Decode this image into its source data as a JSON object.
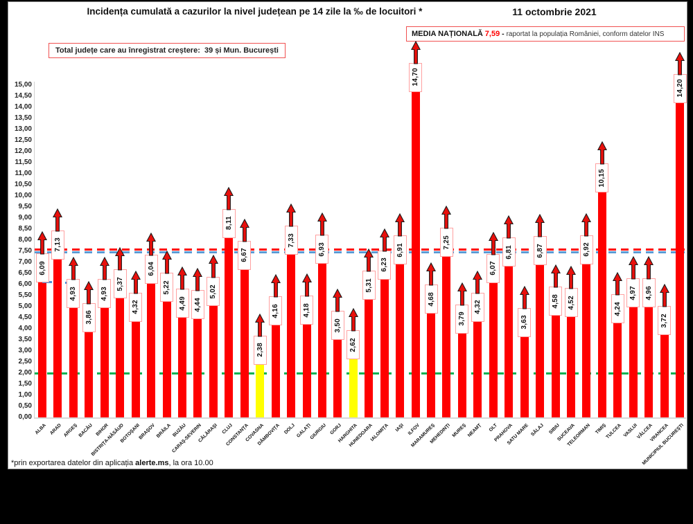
{
  "header": {
    "title": "Incidența cumulată a cazurilor la nivel județean pe 14 zile la ‰ de locuitori *",
    "date": "11 octombrie 2021",
    "growth_box_text": "Total județe care au înregistrat creștere:  39 și Mun. București",
    "national_average": {
      "label": "MEDIA NAȚIONALĂ",
      "value": "7,59",
      "separator": "-",
      "note": "raportat la populația României, conform datelor INS"
    }
  },
  "footer": {
    "prefix": "*prin exportarea datelor din aplicația ",
    "bold": "alerte.ms",
    "suffix": ", la ora 10.00"
  },
  "chart_data": {
    "type": "bar",
    "title": "Incidența cumulată a cazurilor la nivel județean pe 14 zile la ‰ de locuitori *",
    "xlabel": "",
    "ylabel": "",
    "ylim": [
      0,
      15
    ],
    "ytick_step": 0.5,
    "grid": false,
    "legend": "none",
    "decimal_separator": ",",
    "categories": [
      "ALBA",
      "ARAD",
      "ARGEȘ",
      "BACĂU",
      "BIHOR",
      "BISTRIȚA-NĂSĂUD",
      "BOTOȘANI",
      "BRAȘOV",
      "BRĂILA",
      "BUZĂU",
      "CARAȘ-SEVERIN",
      "CĂLĂRAȘI",
      "CLUJ",
      "CONSTANȚA",
      "COVASNA",
      "DÂMBOVIȚA",
      "DOLJ",
      "GALAȚI",
      "GIURGIU",
      "GORJ",
      "HARGHITA",
      "HUNEDOARA",
      "IALOMIȚA",
      "IAȘI",
      "ILFOV",
      "MARAMUREȘ",
      "MEHEDINȚI",
      "MUREȘ",
      "NEAMȚ",
      "OLT",
      "PRAHOVA",
      "SATU MARE",
      "SĂLAJ",
      "SIBIU",
      "SUCEAVA",
      "TELEORMAN",
      "TIMIȘ",
      "TULCEA",
      "VASLUI",
      "VÂLCEA",
      "VRANCEA",
      "MUNICIPIUL BUCUREȘTI"
    ],
    "values": [
      6.09,
      7.13,
      4.93,
      3.86,
      4.93,
      5.37,
      4.32,
      6.04,
      5.22,
      4.49,
      4.44,
      5.02,
      8.11,
      6.67,
      2.38,
      4.16,
      7.33,
      4.18,
      6.93,
      3.5,
      2.62,
      5.31,
      6.23,
      6.91,
      14.7,
      4.68,
      7.25,
      3.79,
      4.32,
      6.07,
      6.81,
      3.63,
      6.87,
      4.58,
      4.52,
      6.92,
      10.15,
      4.24,
      4.97,
      4.96,
      3.72,
      14.2
    ],
    "value_labels": [
      "6,09",
      "7,13",
      "4,93",
      "3,86",
      "4,93",
      "5,37",
      "4,32",
      "6,04",
      "5,22",
      "4,49",
      "4,44",
      "5,02",
      "8,11",
      "6,67",
      "2,38",
      "4,16",
      "7,33",
      "4,18",
      "6,93",
      "3,50",
      "2,62",
      "5,31",
      "6,23",
      "6,91",
      "14,70",
      "4,68",
      "7,25",
      "3,79",
      "4,32",
      "6,07",
      "6,81",
      "3,63",
      "6,87",
      "4,58",
      "4,52",
      "6,92",
      "10,15",
      "4,24",
      "4,97",
      "4,96",
      "3,72",
      "14,20"
    ],
    "bar_color": "#ff0000",
    "highlight_color": "#ffff00",
    "highlight_indices": [
      14,
      20
    ],
    "marker": "up-arrow-above-each-bar",
    "arrow_color": "#e8100c",
    "reference_lines": [
      {
        "name": "media-nationala",
        "value": 7.59,
        "color": "#ff0000",
        "style": "dashed"
      },
      {
        "name": "reference-secondary",
        "value": 7.45,
        "color": "#5b9bd5",
        "style": "dashed"
      },
      {
        "name": "reference-green",
        "value": 2.0,
        "color": "#00b050",
        "style": "dashed"
      }
    ]
  }
}
